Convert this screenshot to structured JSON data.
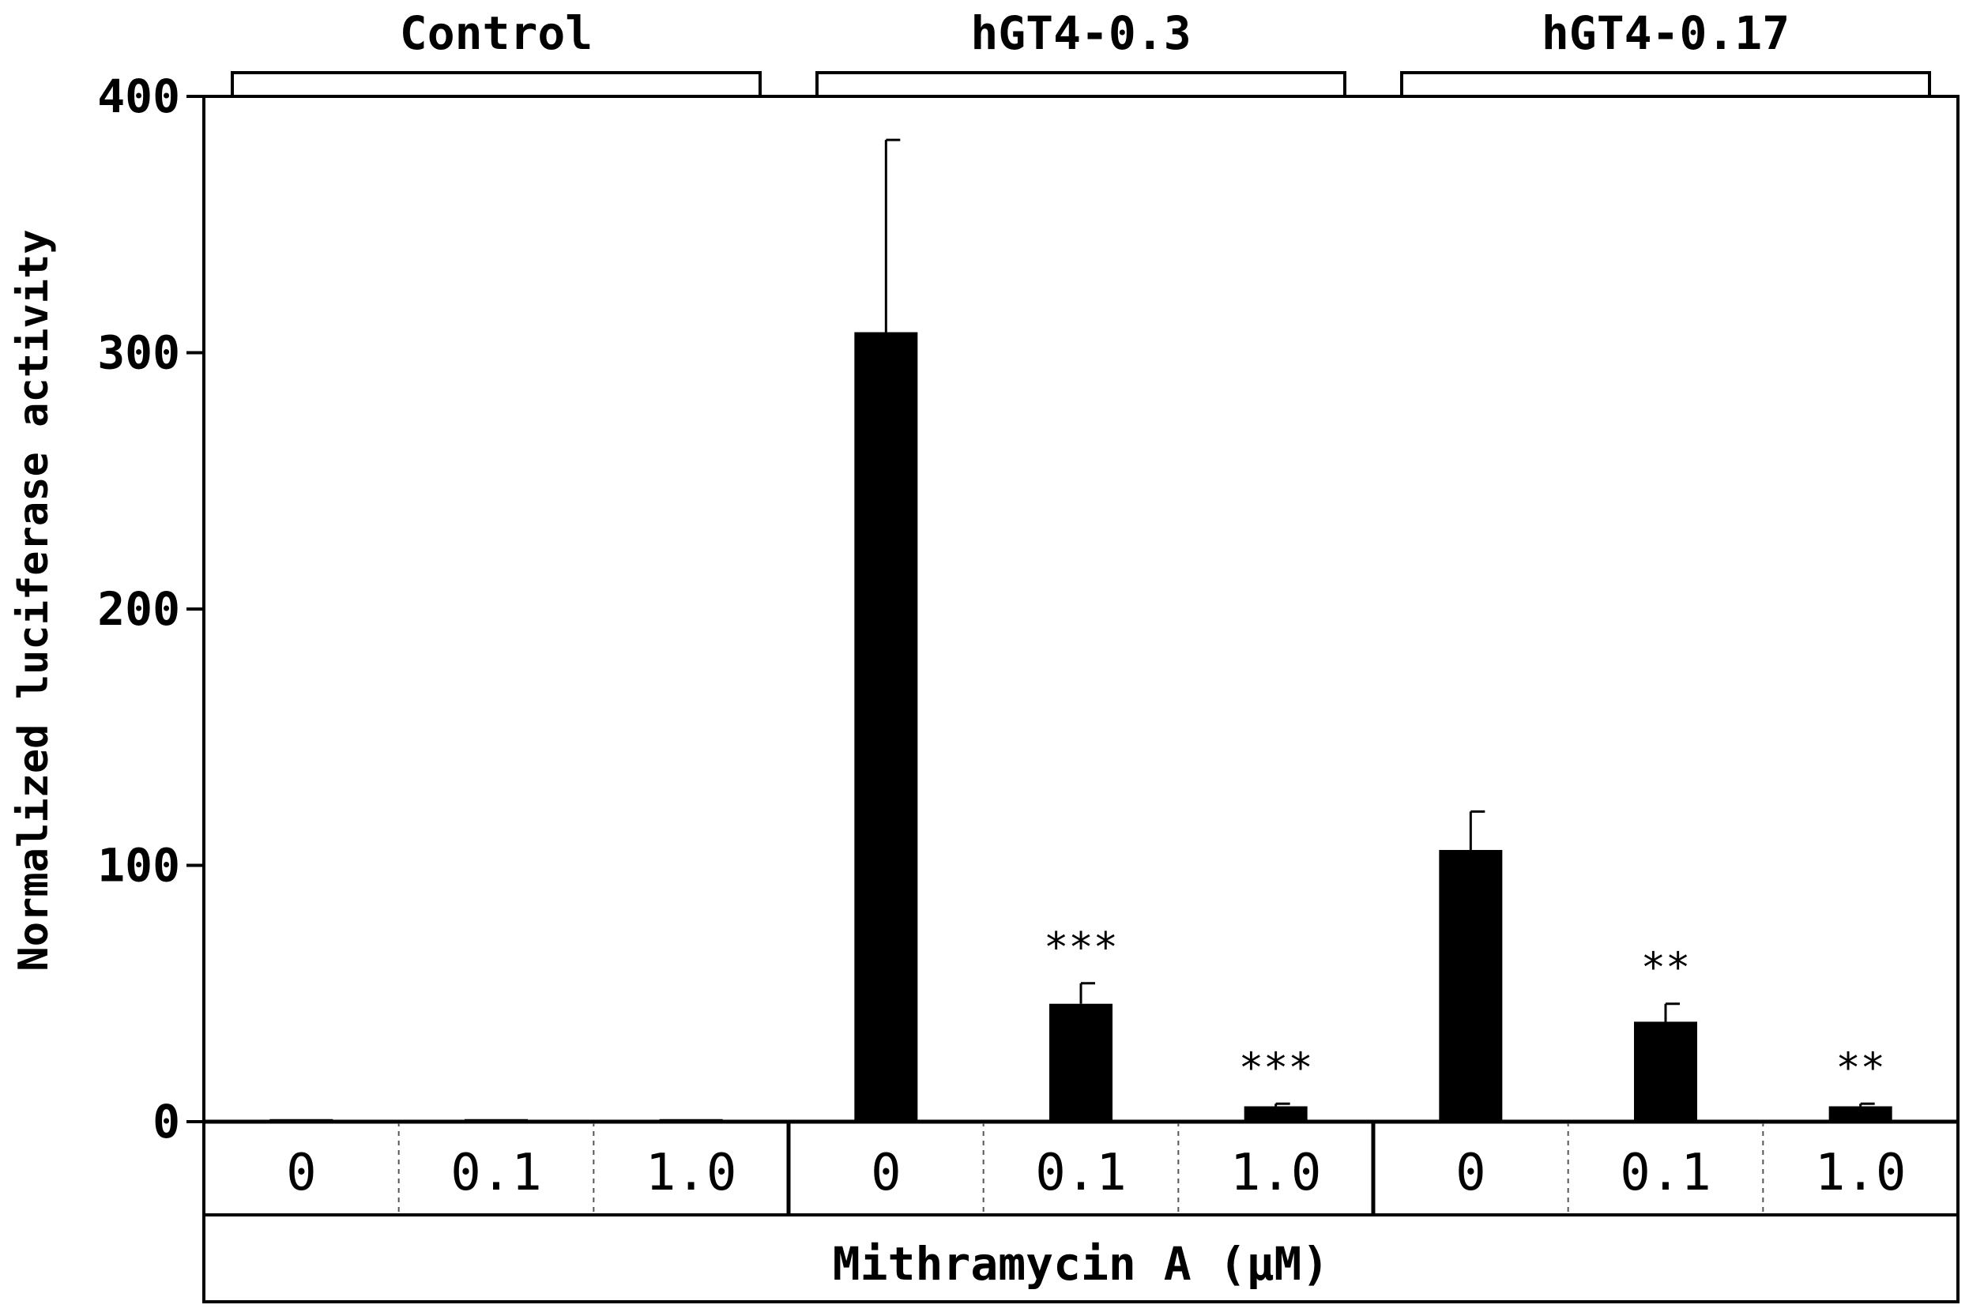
{
  "chart_data": {
    "type": "bar",
    "ylabel": "Normalized luciferase activity",
    "xlabel": "Mithramycin A (μM)",
    "ylim": [
      0,
      400
    ],
    "yticks": [
      "0",
      "100",
      "200",
      "300",
      "400"
    ],
    "groups": [
      "Control",
      "hGT4-0.3",
      "hGT4-0.17"
    ],
    "dose_labels": [
      "0",
      "0.1",
      "1.0"
    ],
    "bars": [
      {
        "group": "Control",
        "dose": "0",
        "value": 1,
        "error": 0,
        "sig": ""
      },
      {
        "group": "Control",
        "dose": "0.1",
        "value": 1,
        "error": 0,
        "sig": ""
      },
      {
        "group": "Control",
        "dose": "1.0",
        "value": 1,
        "error": 0,
        "sig": ""
      },
      {
        "group": "hGT4-0.3",
        "dose": "0",
        "value": 308,
        "error": 75,
        "sig": ""
      },
      {
        "group": "hGT4-0.3",
        "dose": "0.1",
        "value": 46,
        "error": 8,
        "sig": "***"
      },
      {
        "group": "hGT4-0.3",
        "dose": "1.0",
        "value": 6,
        "error": 1,
        "sig": "***"
      },
      {
        "group": "hGT4-0.17",
        "dose": "0",
        "value": 106,
        "error": 15,
        "sig": ""
      },
      {
        "group": "hGT4-0.17",
        "dose": "0.1",
        "value": 39,
        "error": 7,
        "sig": "**"
      },
      {
        "group": "hGT4-0.17",
        "dose": "1.0",
        "value": 6,
        "error": 1,
        "sig": "**"
      }
    ],
    "bar_color": "#000000",
    "grid": false
  }
}
